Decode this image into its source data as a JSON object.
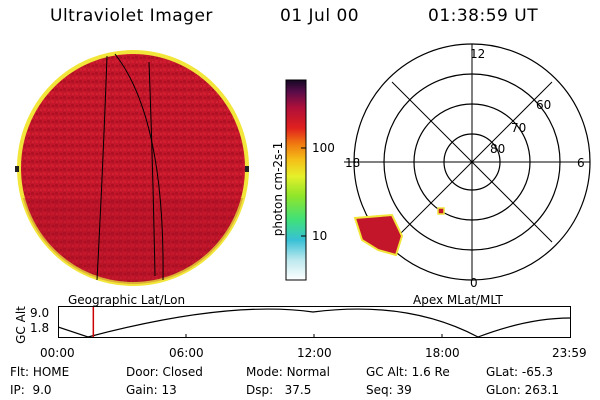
{
  "header": {
    "instrument": "Ultraviolet Imager",
    "date": "01 Jul 00",
    "time": "01:38:59 UT"
  },
  "left_panel": {
    "caption": "Geographic Lat/Lon"
  },
  "colorbar": {
    "unit_label": "photon cm-2s-1",
    "tick_labels": [
      "100",
      "10"
    ]
  },
  "right_panel": {
    "caption": "Apex MLat/MLT",
    "mlt_labels": {
      "top": "12",
      "bottom": "0",
      "left": "18",
      "right": "6"
    },
    "lat_labels": [
      "60",
      "70",
      "80"
    ]
  },
  "altitude_plot": {
    "ylabel": "GC Alt",
    "y_ticks": [
      "9.0",
      "1.8"
    ],
    "x_ticks": [
      "00:00",
      "06:00",
      "12:00",
      "18:00",
      "23:59"
    ],
    "current_time_fraction": 0.069
  },
  "status": {
    "flt_label": "Flt:",
    "flt_value": "HOME",
    "ip_label": "IP:",
    "ip_value": "9.0",
    "door_label": "Door:",
    "door_value": "Closed",
    "gain_label": "Gain:",
    "gain_value": "13",
    "mode_label": "Mode:",
    "mode_value": "Normal",
    "dsp_label": "Dsp:",
    "dsp_value": "37.5",
    "gcalt_label": "GC Alt:",
    "gcalt_value": "1.6 Re",
    "seq_label": "Seq:",
    "seq_value": "39",
    "glat_label": "GLat:",
    "glat_value": "-65.3",
    "glon_label": "GLon:",
    "glon_value": "263.1"
  },
  "colors": {
    "disk": "#c8102e",
    "limb": "#f2e63a",
    "background": "#ffffff"
  }
}
